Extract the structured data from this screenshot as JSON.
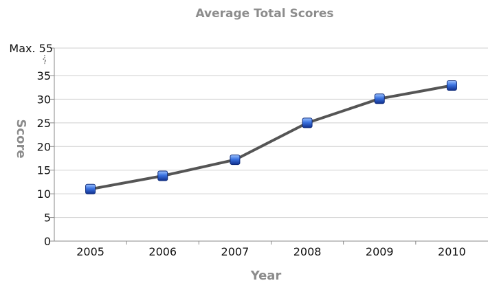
{
  "chart_data": {
    "type": "line",
    "title": "Average Total Scores",
    "xlabel": "Year",
    "ylabel": "Score",
    "categories": [
      "2005",
      "2006",
      "2007",
      "2008",
      "2009",
      "2010"
    ],
    "series": [
      {
        "values": [
          11,
          13.8,
          17.2,
          25,
          30.1,
          32.9
        ]
      }
    ],
    "ylim": [
      0,
      55
    ],
    "y_ticks": [
      0,
      5,
      10,
      15,
      20,
      25,
      30,
      35
    ],
    "y_max_label": "Max. 55",
    "axis_break": true,
    "grid": true,
    "colors": {
      "line": "#555555",
      "marker": "#2a5fd6",
      "grid": "#cfcfcf",
      "title": "#8c8c8c"
    }
  }
}
